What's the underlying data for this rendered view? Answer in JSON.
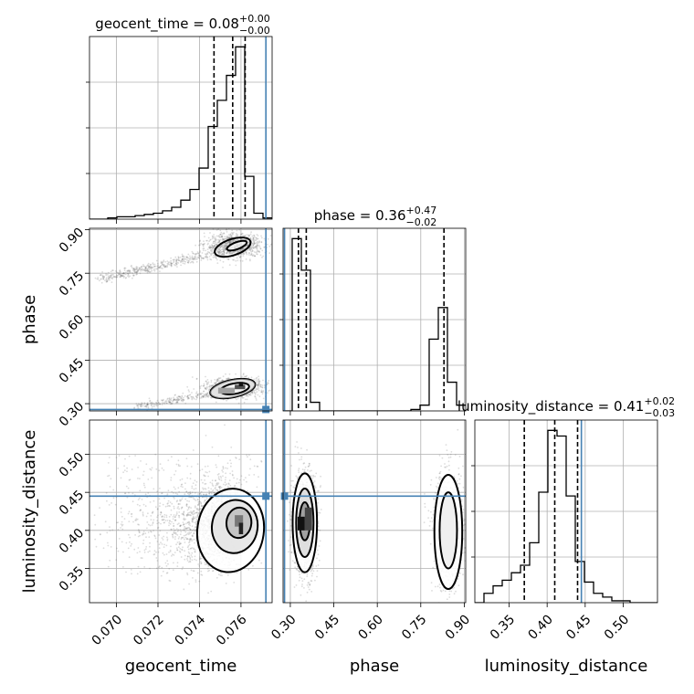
{
  "chart_data": {
    "type": "corner",
    "parameters": [
      "geocent_time",
      "phase",
      "luminosity_distance"
    ],
    "truths": {
      "geocent_time": 0.0772,
      "phase": 0.28,
      "luminosity_distance": 0.445
    },
    "grid": true,
    "titles": {
      "geocent_time": {
        "prefix": "geocent_time = 0.08",
        "plus": "+0.00",
        "minus": "−0.00"
      },
      "phase": {
        "prefix": "phase = 0.36",
        "plus": "+0.47",
        "minus": "−0.02"
      },
      "luminosity_distance": {
        "prefix": "luminosity_distance = 0.41",
        "plus": "+0.02",
        "minus": "−0.03"
      }
    },
    "axis_labels": {
      "x": [
        "geocent_time",
        "phase",
        "luminosity_distance"
      ],
      "y": [
        "phase",
        "luminosity_distance"
      ]
    },
    "ranges": {
      "geocent_time": [
        0.0687,
        0.0775
      ],
      "phase": [
        0.275,
        0.905
      ],
      "luminosity_distance": [
        0.305,
        0.545
      ]
    },
    "ticks": {
      "geocent_time": [
        {
          "v": 0.07,
          "label": "0.070"
        },
        {
          "v": 0.072,
          "label": "0.072"
        },
        {
          "v": 0.074,
          "label": "0.074"
        },
        {
          "v": 0.076,
          "label": "0.076"
        }
      ],
      "phase": [
        {
          "v": 0.3,
          "label": "0.30"
        },
        {
          "v": 0.45,
          "label": "0.45"
        },
        {
          "v": 0.6,
          "label": "0.60"
        },
        {
          "v": 0.75,
          "label": "0.75"
        },
        {
          "v": 0.9,
          "label": "0.90"
        }
      ],
      "luminosity_distance": [
        {
          "v": 0.35,
          "label": "0.35"
        },
        {
          "v": 0.4,
          "label": "0.40"
        },
        {
          "v": 0.45,
          "label": "0.45"
        },
        {
          "v": 0.5,
          "label": "0.50"
        }
      ]
    },
    "histograms": {
      "geocent_time": {
        "bin_edges": [
          0.0687,
          0.06914,
          0.06958,
          0.07002,
          0.07046,
          0.0709,
          0.07134,
          0.07178,
          0.07222,
          0.07266,
          0.0731,
          0.07354,
          0.07398,
          0.07442,
          0.07486,
          0.0753,
          0.07574,
          0.07618,
          0.07662,
          0.07706,
          0.0775
        ],
        "counts": [
          0,
          0,
          1,
          2,
          2,
          3,
          4,
          5,
          7,
          10,
          16,
          25,
          43,
          78,
          100,
          121,
          145,
          36,
          5,
          1
        ],
        "quantiles": [
          0.0747,
          0.0756,
          0.0762
        ]
      },
      "phase": {
        "bin_edges": [
          0.275,
          0.3065,
          0.338,
          0.3695,
          0.401,
          0.4325,
          0.464,
          0.4955,
          0.527,
          0.5585,
          0.59,
          0.6215,
          0.653,
          0.6845,
          0.716,
          0.7475,
          0.779,
          0.8105,
          0.842,
          0.8735,
          0.905
        ],
        "counts": [
          0,
          120,
          98,
          6,
          0,
          0,
          0,
          0,
          0,
          0,
          0,
          0,
          0,
          0,
          1,
          4,
          50,
          72,
          20,
          4
        ],
        "quantiles": [
          0.328,
          0.355,
          0.83
        ]
      },
      "luminosity_distance": {
        "bin_edges": [
          0.305,
          0.317,
          0.329,
          0.341,
          0.353,
          0.365,
          0.377,
          0.389,
          0.401,
          0.413,
          0.425,
          0.437,
          0.449,
          0.461,
          0.473,
          0.485,
          0.497,
          0.509,
          0.521,
          0.533,
          0.545
        ],
        "counts": [
          0,
          5,
          9,
          12,
          16,
          20,
          32,
          59,
          92,
          89,
          57,
          22,
          11,
          5,
          3,
          1,
          1,
          0,
          0,
          0
        ],
        "quantiles": [
          0.37,
          0.41,
          0.44
        ]
      }
    },
    "contour_panels": [
      {
        "x": "geocent_time",
        "y": "phase"
      },
      {
        "x": "geocent_time",
        "y": "luminosity_distance"
      },
      {
        "x": "phase",
        "y": "luminosity_distance"
      }
    ]
  },
  "colors": {
    "truth": "#4682b4",
    "grid": "#b0b0b0",
    "ink": "#000000",
    "points": "#606060"
  }
}
